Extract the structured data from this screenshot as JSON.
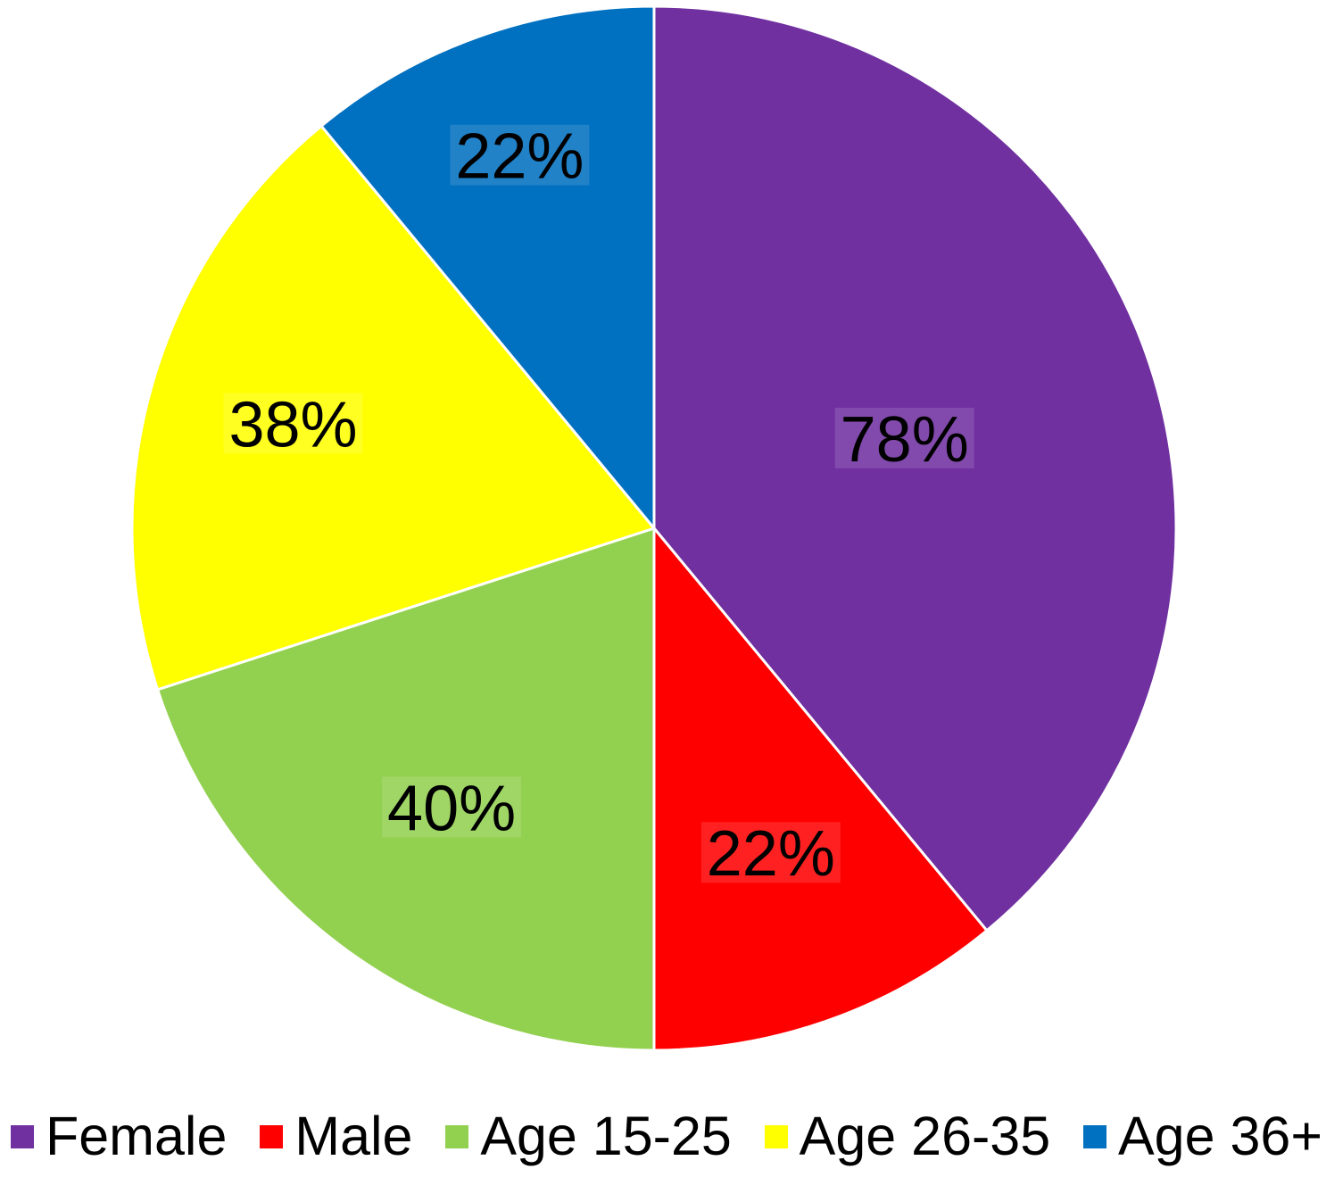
{
  "chart_data": {
    "type": "pie",
    "title": "",
    "start_angle_deg": 0,
    "direction": "clockwise",
    "background_color": "#FFFFFF",
    "slice_border_color": "#FFFFFF",
    "label_color": "#000000",
    "legend_position": "bottom",
    "values_total": 200,
    "slices": [
      {
        "label": "Female",
        "value": 78,
        "display": "78%",
        "color": "#7030A0",
        "label_r": 0.51
      },
      {
        "label": "Male",
        "value": 22,
        "display": "22%",
        "color": "#FF0000",
        "label_r": 0.66
      },
      {
        "label": "Age 15-25",
        "value": 40,
        "display": "40%",
        "color": "#92D050",
        "label_r": 0.66
      },
      {
        "label": "Age 26-35",
        "value": 38,
        "display": "38%",
        "color": "#FFFF00",
        "label_r": 0.72
      },
      {
        "label": "Age 36+",
        "value": 22,
        "display": "22%",
        "color": "#0070C0",
        "label_r": 0.76
      }
    ]
  }
}
